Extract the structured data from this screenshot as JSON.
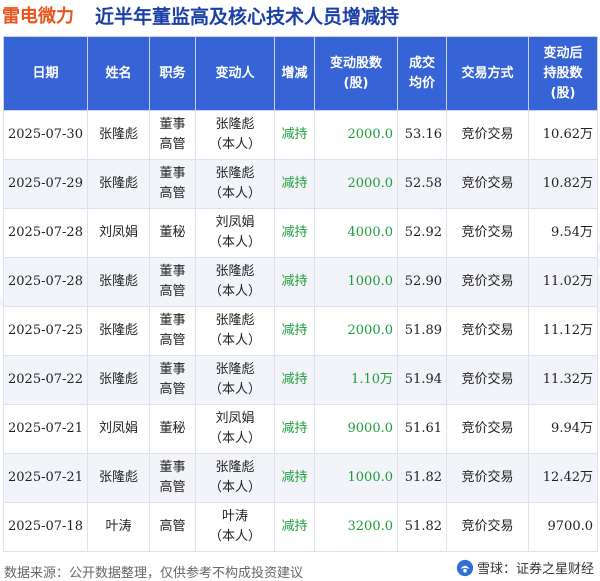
{
  "header": {
    "company": "雷电微力",
    "title": "近半年董监高及核心技术人员增减持"
  },
  "table": {
    "columns": [
      "日期",
      "姓名",
      "职务",
      "变动人",
      "增减",
      "变动股数\n(股)",
      "成交\n均价",
      "交易方式",
      "变动后\n持股数\n(股)"
    ],
    "rows": [
      {
        "date": "2025-07-30",
        "name": "张隆彪",
        "role": "董事\n高管",
        "changer": "张隆彪\n（本人）",
        "direction": "减持",
        "shares": "2000.0",
        "price": "53.16",
        "method": "竞价交易",
        "after": "10.62万"
      },
      {
        "date": "2025-07-29",
        "name": "张隆彪",
        "role": "董事\n高管",
        "changer": "张隆彪\n（本人）",
        "direction": "减持",
        "shares": "2000.0",
        "price": "52.58",
        "method": "竞价交易",
        "after": "10.82万"
      },
      {
        "date": "2025-07-28",
        "name": "刘凤娟",
        "role": "董秘",
        "changer": "刘凤娟\n（本人）",
        "direction": "减持",
        "shares": "4000.0",
        "price": "52.92",
        "method": "竞价交易",
        "after": "9.54万"
      },
      {
        "date": "2025-07-28",
        "name": "张隆彪",
        "role": "董事\n高管",
        "changer": "张隆彪\n（本人）",
        "direction": "减持",
        "shares": "1000.0",
        "price": "52.90",
        "method": "竞价交易",
        "after": "11.02万"
      },
      {
        "date": "2025-07-25",
        "name": "张隆彪",
        "role": "董事\n高管",
        "changer": "张隆彪\n（本人）",
        "direction": "减持",
        "shares": "2000.0",
        "price": "51.89",
        "method": "竞价交易",
        "after": "11.12万"
      },
      {
        "date": "2025-07-22",
        "name": "张隆彪",
        "role": "董事\n高管",
        "changer": "张隆彪\n（本人）",
        "direction": "减持",
        "shares": "1.10万",
        "price": "51.94",
        "method": "竞价交易",
        "after": "11.32万"
      },
      {
        "date": "2025-07-21",
        "name": "刘凤娟",
        "role": "董秘",
        "changer": "刘凤娟\n（本人）",
        "direction": "减持",
        "shares": "9000.0",
        "price": "51.61",
        "method": "竞价交易",
        "after": "9.94万"
      },
      {
        "date": "2025-07-21",
        "name": "张隆彪",
        "role": "董事\n高管",
        "changer": "张隆彪\n（本人）",
        "direction": "减持",
        "shares": "1000.0",
        "price": "51.82",
        "method": "竞价交易",
        "after": "12.42万"
      },
      {
        "date": "2025-07-18",
        "name": "叶涛",
        "role": "高管",
        "changer": "叶涛\n（本人）",
        "direction": "减持",
        "shares": "3200.0",
        "price": "51.82",
        "method": "竞价交易",
        "after": "9700.0"
      }
    ]
  },
  "footer": {
    "source": "数据来源：公开数据整理，仅供参考不构成投资建议",
    "brand": "雪球：证券之星财经"
  },
  "watermark": "证券之星",
  "colors": {
    "header_bg": "#3663d5",
    "title": "#1a3fa8",
    "company": "#e8561e",
    "decrease": "#1e9e3a"
  },
  "icons": {
    "brand_icon": "snowball-icon"
  }
}
